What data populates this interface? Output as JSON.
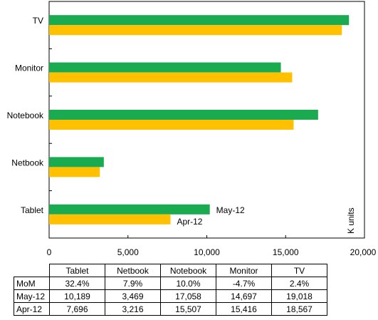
{
  "chart_data": {
    "type": "bar",
    "orientation": "horizontal",
    "categories": [
      "TV",
      "Monitor",
      "Notebook",
      "Netbook",
      "Tablet"
    ],
    "series": [
      {
        "name": "May-12",
        "color": "#1aaa4f",
        "values": [
          19018,
          14697,
          17058,
          3469,
          10189
        ]
      },
      {
        "name": "Apr-12",
        "color": "#ffc000",
        "values": [
          18567,
          15416,
          15507,
          3216,
          7696
        ]
      }
    ],
    "xlim": [
      0,
      20000
    ],
    "xticks": [
      "0",
      "5,000",
      "10,000",
      "15,000",
      "20,000"
    ],
    "unit_label": "K units",
    "grid": false,
    "legend": "series names labelled beside Tablet bars"
  },
  "table": {
    "columns": [
      "Tablet",
      "Netbook",
      "Notebook",
      "Monitor",
      "TV"
    ],
    "rows": [
      {
        "label": "MoM",
        "cells": [
          "32.4%",
          "7.9%",
          "10.0%",
          "-4.7%",
          "2.4%"
        ]
      },
      {
        "label": "May-12",
        "cells": [
          "10,189",
          "3,469",
          "17,058",
          "14,697",
          "19,018"
        ]
      },
      {
        "label": "Apr-12",
        "cells": [
          "7,696",
          "3,216",
          "15,507",
          "15,416",
          "18,567"
        ]
      }
    ]
  }
}
